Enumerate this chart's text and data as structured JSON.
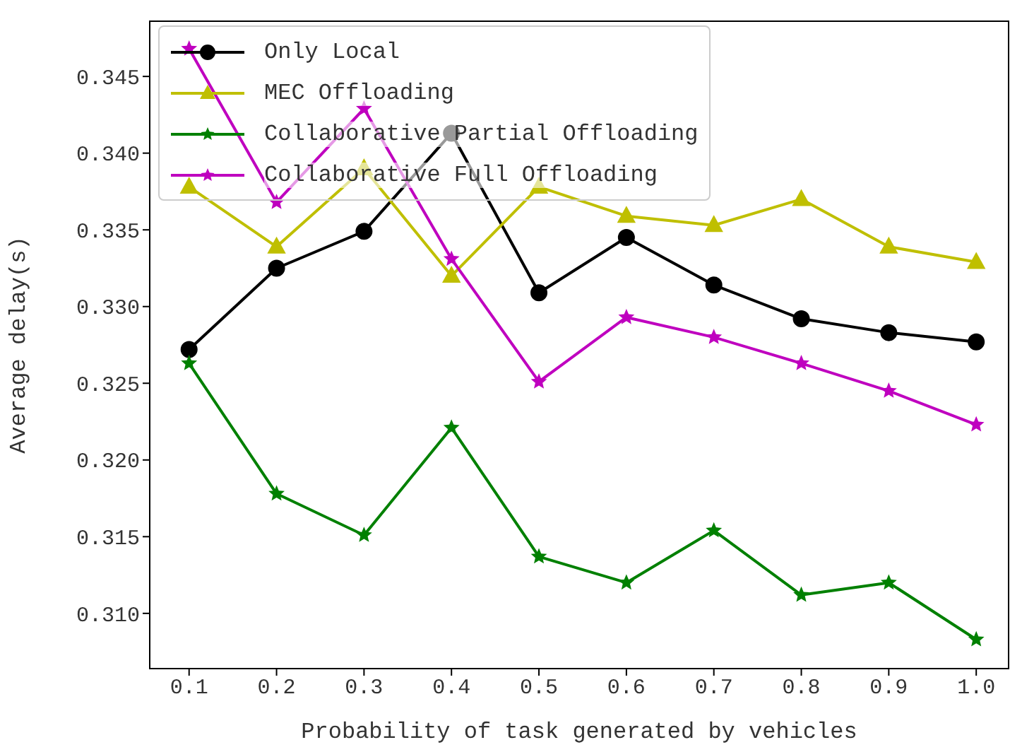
{
  "chart_data": {
    "type": "line",
    "xlabel": "Probability of task generated by vehicles",
    "ylabel": "Average delay(s)",
    "x": [
      0.1,
      0.2,
      0.3,
      0.4,
      0.5,
      0.6,
      0.7,
      0.8,
      0.9,
      1.0
    ],
    "series": [
      {
        "name": "Only Local",
        "color": "#000000",
        "marker": "circle",
        "values": [
          0.3272,
          0.3325,
          0.3349,
          0.3413,
          0.3309,
          0.3345,
          0.3314,
          0.3292,
          0.3283,
          0.3277
        ]
      },
      {
        "name": "MEC Offloading",
        "color": "#bfbf00",
        "marker": "triangle",
        "values": [
          0.3378,
          0.3339,
          0.339,
          0.332,
          0.3378,
          0.3359,
          0.3353,
          0.337,
          0.3339,
          0.3329
        ]
      },
      {
        "name": "Collaborative Partial Offloading",
        "color": "#008000",
        "marker": "star",
        "values": [
          0.3263,
          0.3178,
          0.3151,
          0.3221,
          0.3137,
          0.312,
          0.3154,
          0.3112,
          0.312,
          0.3083
        ]
      },
      {
        "name": "Collaborative Full Offloading",
        "color": "#bf00bf",
        "marker": "star",
        "values": [
          0.3468,
          0.3368,
          0.3429,
          0.3331,
          0.3251,
          0.3293,
          0.328,
          0.3263,
          0.3245,
          0.3223
        ]
      }
    ],
    "xlim": [
      0.055,
      1.037
    ],
    "ylim": [
      0.3064,
      0.3486
    ],
    "xticks": [
      0.1,
      0.2,
      0.3,
      0.4,
      0.5,
      0.6,
      0.7,
      0.8,
      0.9,
      {
        "value": 1.0,
        "label": "1.0"
      }
    ],
    "yticks": [
      {
        "value": 0.31,
        "label": "0.310"
      },
      0.315,
      {
        "value": 0.32,
        "label": "0.320"
      },
      0.325,
      {
        "value": 0.33,
        "label": "0.330"
      },
      0.335,
      {
        "value": 0.34,
        "label": "0.340"
      },
      0.345
    ],
    "grid": false,
    "legend": "top left"
  }
}
